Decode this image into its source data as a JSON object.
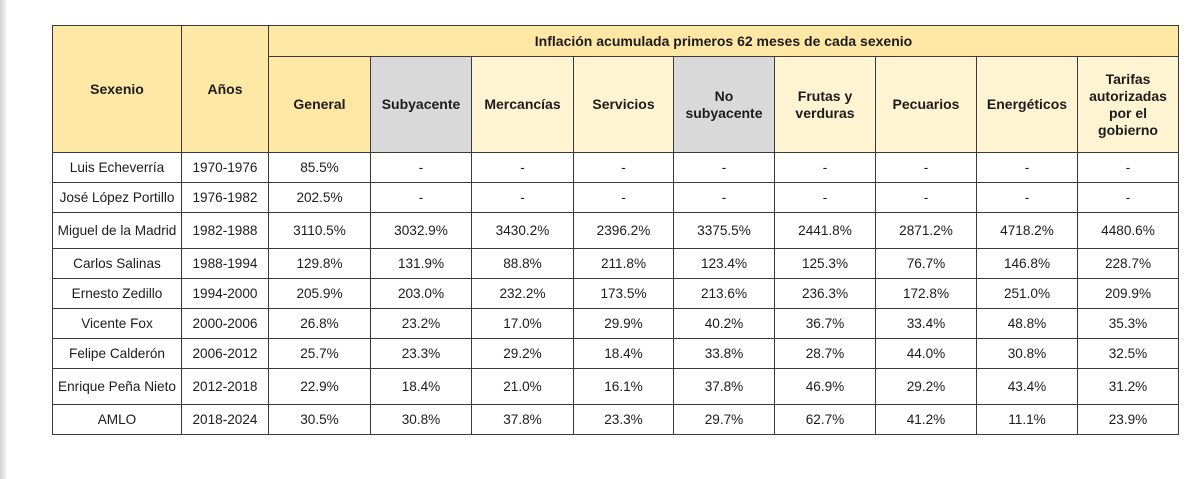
{
  "table": {
    "title": "Inflación acumulada primeros 62 meses de cada sexenio",
    "header_sexenio": "Sexenio",
    "header_anios": "Años",
    "columns": [
      "General",
      "Subyacente",
      "Mercancías",
      "Servicios",
      "No subyacente",
      "Frutas y verduras",
      "Pecuarios",
      "Energéticos",
      "Tarifas autorizadas por el gobierno"
    ],
    "rows": [
      {
        "sexenio": "Luis Echeverría",
        "anios": "1970-1976",
        "values": [
          "85.5%",
          "-",
          "-",
          "-",
          "-",
          "-",
          "-",
          "-",
          "-"
        ]
      },
      {
        "sexenio": "José López Portillo",
        "anios": "1976-1982",
        "values": [
          "202.5%",
          "-",
          "-",
          "-",
          "-",
          "-",
          "-",
          "-",
          "-"
        ]
      },
      {
        "sexenio": "Miguel de la Madrid",
        "anios": "1982-1988",
        "values": [
          "3110.5%",
          "3032.9%",
          "3430.2%",
          "2396.2%",
          "3375.5%",
          "2441.8%",
          "2871.2%",
          "4718.2%",
          "4480.6%"
        ]
      },
      {
        "sexenio": "Carlos Salinas",
        "anios": "1988-1994",
        "values": [
          "129.8%",
          "131.9%",
          "88.8%",
          "211.8%",
          "123.4%",
          "125.3%",
          "76.7%",
          "146.8%",
          "228.7%"
        ]
      },
      {
        "sexenio": "Ernesto Zedillo",
        "anios": "1994-2000",
        "values": [
          "205.9%",
          "203.0%",
          "232.2%",
          "173.5%",
          "213.6%",
          "236.3%",
          "172.8%",
          "251.0%",
          "209.9%"
        ]
      },
      {
        "sexenio": "Vicente Fox",
        "anios": "2000-2006",
        "values": [
          "26.8%",
          "23.2%",
          "17.0%",
          "29.9%",
          "40.2%",
          "36.7%",
          "33.4%",
          "48.8%",
          "35.3%"
        ]
      },
      {
        "sexenio": "Felipe Calderón",
        "anios": "2006-2012",
        "values": [
          "25.7%",
          "23.3%",
          "29.2%",
          "18.4%",
          "33.8%",
          "28.7%",
          "44.0%",
          "30.8%",
          "32.5%"
        ]
      },
      {
        "sexenio": "Enrique Peña Nieto",
        "anios": "2012-2018",
        "values": [
          "22.9%",
          "18.4%",
          "21.0%",
          "16.1%",
          "37.8%",
          "46.9%",
          "29.2%",
          "43.4%",
          "31.2%"
        ]
      },
      {
        "sexenio": "AMLO",
        "anios": "2018-2024",
        "values": [
          "30.5%",
          "30.8%",
          "37.8%",
          "23.3%",
          "29.7%",
          "62.7%",
          "41.2%",
          "11.1%",
          "23.9%"
        ]
      }
    ]
  },
  "colors": {
    "header_yellow": "#ffe8a6",
    "header_light": "#fff4d2",
    "header_gray": "#d9d9d9"
  }
}
